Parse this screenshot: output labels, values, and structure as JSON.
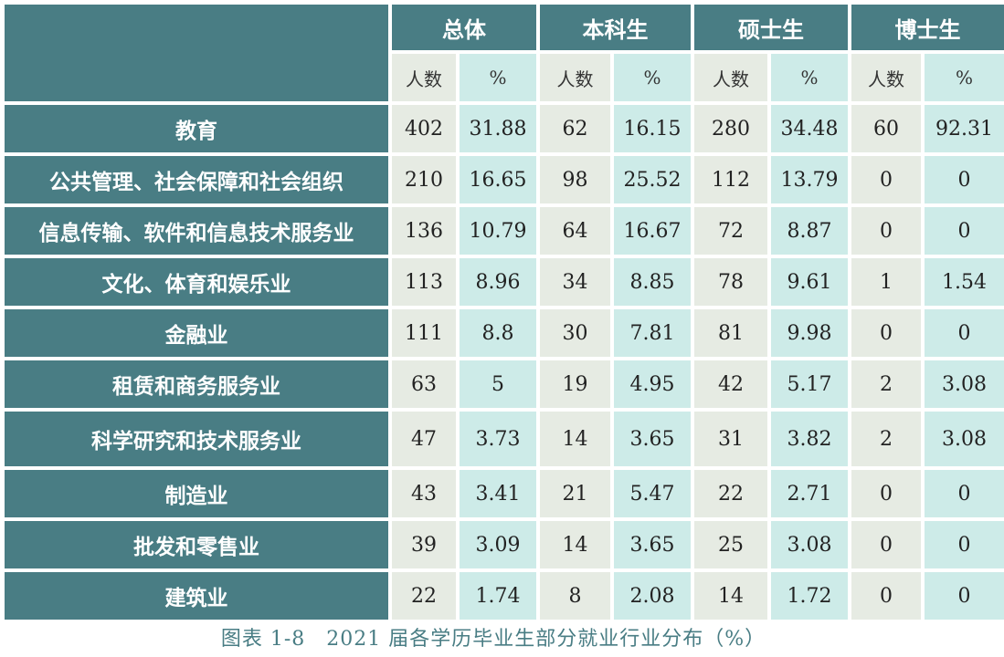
{
  "header": {
    "groups": [
      "总体",
      "本科生",
      "硕士生",
      "博士生"
    ],
    "sub": [
      "人数",
      "%",
      "人数",
      "%",
      "人数",
      "%",
      "人数",
      "%"
    ]
  },
  "rows": [
    {
      "label": "教育",
      "values": [
        "402",
        "31.88",
        "62",
        "16.15",
        "280",
        "34.48",
        "60",
        "92.31"
      ]
    },
    {
      "label": "公共管理、社会保障和社会组织",
      "values": [
        "210",
        "16.65",
        "98",
        "25.52",
        "112",
        "13.79",
        "0",
        "0"
      ]
    },
    {
      "label": "信息传输、软件和信息技术服务业",
      "values": [
        "136",
        "10.79",
        "64",
        "16.67",
        "72",
        "8.87",
        "0",
        "0"
      ]
    },
    {
      "label": "文化、体育和娱乐业",
      "values": [
        "113",
        "8.96",
        "34",
        "8.85",
        "78",
        "9.61",
        "1",
        "1.54"
      ]
    },
    {
      "label": "金融业",
      "values": [
        "111",
        "8.8",
        "30",
        "7.81",
        "81",
        "9.98",
        "0",
        "0"
      ]
    },
    {
      "label": "租赁和商务服务业",
      "values": [
        "63",
        "5",
        "19",
        "4.95",
        "42",
        "5.17",
        "2",
        "3.08"
      ]
    },
    {
      "label": "科学研究和技术服务业",
      "values": [
        "47",
        "3.73",
        "14",
        "3.65",
        "31",
        "3.82",
        "2",
        "3.08"
      ]
    },
    {
      "label": "制造业",
      "values": [
        "43",
        "3.41",
        "21",
        "5.47",
        "22",
        "2.71",
        "0",
        "0"
      ]
    },
    {
      "label": "批发和零售业",
      "values": [
        "39",
        "3.09",
        "14",
        "3.65",
        "25",
        "3.08",
        "0",
        "0"
      ]
    },
    {
      "label": "建筑业",
      "values": [
        "22",
        "1.74",
        "8",
        "2.08",
        "14",
        "1.72",
        "0",
        "0"
      ]
    }
  ],
  "caption": "图表 1-8　2021 届各学历毕业生部分就业行业分布（%）"
}
